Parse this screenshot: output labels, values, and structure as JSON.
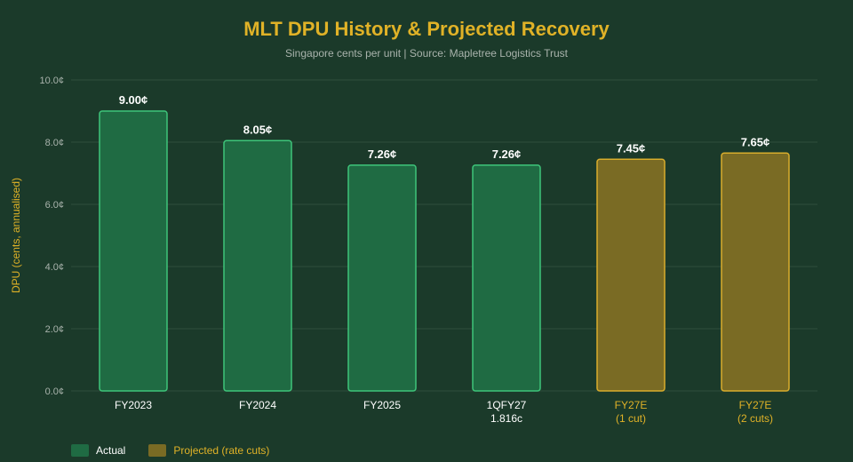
{
  "chart_data": {
    "type": "bar",
    "title": "MLT DPU History & Projected Recovery",
    "subtitle": "Singapore cents per unit | Source: Mapletree Logistics Trust",
    "ylabel": "DPU (cents, annualised)",
    "ylim": [
      0,
      10
    ],
    "yticks": [
      "0.0¢",
      "2.0¢",
      "4.0¢",
      "6.0¢",
      "8.0¢",
      "10.0¢"
    ],
    "ytick_values": [
      0,
      2,
      4,
      6,
      8,
      10
    ],
    "grid": true,
    "legend_position": "bottom-left",
    "categories": [
      [
        "FY2023"
      ],
      [
        "FY2024"
      ],
      [
        "FY2025"
      ],
      [
        "1QFY27",
        "1.816c"
      ],
      [
        "FY27E",
        "(1 cut)"
      ],
      [
        "FY27E",
        "(2 cuts)"
      ]
    ],
    "values": [
      9.0,
      8.05,
      7.26,
      7.26,
      7.45,
      7.65
    ],
    "value_labels": [
      "9.00¢",
      "8.05¢",
      "7.26¢",
      "7.26¢",
      "7.45¢",
      "7.65¢"
    ],
    "groups": [
      "actual",
      "actual",
      "actual",
      "actual",
      "projected",
      "projected"
    ],
    "series": [
      {
        "name": "Actual",
        "key": "actual",
        "fill": "#1f6b43",
        "stroke": "#3ec57a",
        "label_color": "#ffffff"
      },
      {
        "name": "Projected (rate cuts)",
        "key": "projected",
        "fill": "#7a6b24",
        "stroke": "#d9ad2c",
        "label_color": "#e0b227"
      }
    ],
    "colors": {
      "background": "#1b3a2a",
      "grid": "#2f4d3c",
      "tick": "#a9b3ac",
      "axis_title": "#e0b227",
      "value_label": "#ffffff",
      "category_label": "#ffffff"
    }
  }
}
